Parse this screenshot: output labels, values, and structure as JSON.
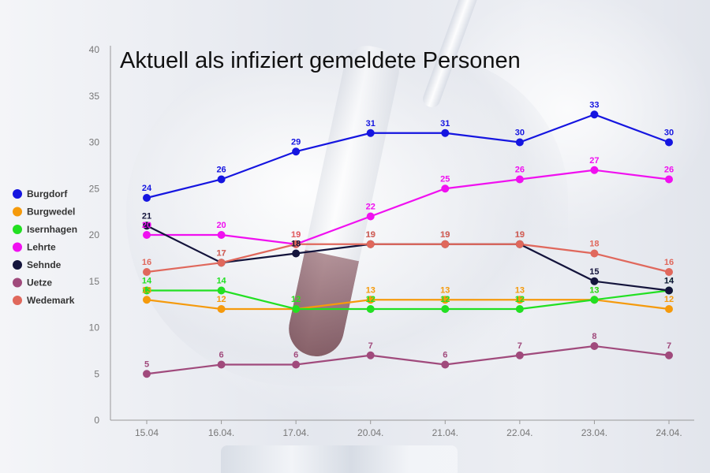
{
  "chart_data": {
    "type": "line",
    "title": "Aktuell als infiziert gemeldete Personen",
    "categories": [
      "15.04",
      "16.04.",
      "17.04.",
      "20.04.",
      "21.04.",
      "22.04.",
      "23.04.",
      "24.04."
    ],
    "ylim": [
      0,
      40
    ],
    "yticks": [
      0,
      5,
      10,
      15,
      20,
      25,
      30,
      35,
      40
    ],
    "grid": false,
    "legend_position": "left",
    "series": [
      {
        "name": "Burgdorf",
        "color": "#1515e0",
        "values": [
          24,
          26,
          29,
          31,
          31,
          30,
          33,
          30
        ]
      },
      {
        "name": "Burgwedel",
        "color": "#f59a0c",
        "values": [
          13,
          12,
          12,
          13,
          13,
          13,
          13,
          12
        ]
      },
      {
        "name": "Isernhagen",
        "color": "#22e022",
        "values": [
          14,
          14,
          12,
          12,
          12,
          12,
          13,
          14
        ]
      },
      {
        "name": "Lehrte",
        "color": "#f010f0",
        "values": [
          20,
          20,
          19,
          22,
          25,
          26,
          27,
          26
        ]
      },
      {
        "name": "Sehnde",
        "color": "#14143c",
        "values": [
          21,
          17,
          18,
          19,
          19,
          19,
          15,
          14
        ]
      },
      {
        "name": "Uetze",
        "color": "#a04a7c",
        "values": [
          5,
          6,
          6,
          7,
          6,
          7,
          8,
          7
        ]
      },
      {
        "name": "Wedemark",
        "color": "#e0685c",
        "values": [
          16,
          17,
          19,
          19,
          19,
          19,
          18,
          16
        ]
      }
    ]
  }
}
